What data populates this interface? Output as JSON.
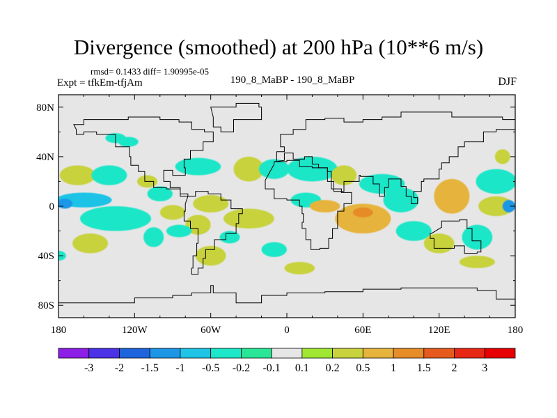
{
  "chart_data": {
    "type": "heatmap",
    "title": "Divergence (smoothed) at 200 hPa (10**6 m/s)",
    "stats_line": "rmsd= 0.1433 diff= 1.90995e-05",
    "experiment_label": "Expt = tfkEm-tfjAm",
    "center_subtitle": "190_8_MaBP - 190_8_MaBP",
    "season": "DJF",
    "x_ticks": [
      "180",
      "120W",
      "60W",
      "0",
      "60E",
      "120E",
      "180"
    ],
    "x_tick_values": [
      -180,
      -120,
      -60,
      0,
      60,
      120,
      180
    ],
    "y_ticks": [
      "80N",
      "40N",
      "0",
      "40S",
      "80S"
    ],
    "y_tick_values": [
      80,
      40,
      0,
      -40,
      -80
    ],
    "xlim": [
      -180,
      180
    ],
    "ylim": [
      -90,
      90
    ],
    "colorbar": {
      "labels": [
        "-3",
        "-2",
        "-1.5",
        "-1",
        "-0.5",
        "-0.2",
        "-0.1",
        "0.1",
        "0.2",
        "0.5",
        "1",
        "1.5",
        "2",
        "3"
      ],
      "levels": [
        -3,
        -2,
        -1.5,
        -1,
        -0.5,
        -0.2,
        -0.1,
        0.1,
        0.2,
        0.5,
        1,
        1.5,
        2,
        3
      ],
      "colors": [
        "#8c1ee6",
        "#4b32e6",
        "#1e64dc",
        "#1e96e6",
        "#1ec3e6",
        "#1ee6c8",
        "#28e696",
        "#e6e6e6",
        "#a0e632",
        "#c8d23c",
        "#e6b43c",
        "#e68c28",
        "#e65a1e",
        "#e62814",
        "#e60000"
      ]
    },
    "background_value_color": "#e6e6e6",
    "anomalies": [
      {
        "lon": -165,
        "lat": 25,
        "rx": 14,
        "ry": 8,
        "value": 0.4
      },
      {
        "lon": -140,
        "lat": 25,
        "rx": 14,
        "ry": 8,
        "value": -0.3
      },
      {
        "lon": -160,
        "lat": 5,
        "rx": 22,
        "ry": 6,
        "value": -0.6
      },
      {
        "lon": -175,
        "lat": 2,
        "rx": 6,
        "ry": 4,
        "value": -1.2
      },
      {
        "lon": -135,
        "lat": -10,
        "rx": 28,
        "ry": 10,
        "value": -0.4
      },
      {
        "lon": -155,
        "lat": -30,
        "rx": 14,
        "ry": 8,
        "value": 0.3
      },
      {
        "lon": -125,
        "lat": 52,
        "rx": 8,
        "ry": 4,
        "value": -0.2
      },
      {
        "lon": -110,
        "lat": 20,
        "rx": 8,
        "ry": 5,
        "value": 0.3
      },
      {
        "lon": -100,
        "lat": 10,
        "rx": 10,
        "ry": 6,
        "value": -0.3
      },
      {
        "lon": -90,
        "lat": -5,
        "rx": 10,
        "ry": 6,
        "value": 0.3
      },
      {
        "lon": -105,
        "lat": -25,
        "rx": 8,
        "ry": 8,
        "value": -0.3
      },
      {
        "lon": -70,
        "lat": 32,
        "rx": 18,
        "ry": 7,
        "value": -0.4
      },
      {
        "lon": -60,
        "lat": 2,
        "rx": 14,
        "ry": 7,
        "value": 0.3
      },
      {
        "lon": -70,
        "lat": -15,
        "rx": 10,
        "ry": 8,
        "value": 0.3
      },
      {
        "lon": -85,
        "lat": -20,
        "rx": 10,
        "ry": 5,
        "value": -0.3
      },
      {
        "lon": -60,
        "lat": -40,
        "rx": 12,
        "ry": 8,
        "value": 0.3
      },
      {
        "lon": -45,
        "lat": -25,
        "rx": 8,
        "ry": 5,
        "value": -0.3
      },
      {
        "lon": -30,
        "lat": 30,
        "rx": 12,
        "ry": 10,
        "value": 0.5
      },
      {
        "lon": -10,
        "lat": 30,
        "rx": 12,
        "ry": 8,
        "value": -0.2
      },
      {
        "lon": -30,
        "lat": -10,
        "rx": 20,
        "ry": 8,
        "value": 0.3
      },
      {
        "lon": -10,
        "lat": -35,
        "rx": 10,
        "ry": 6,
        "value": -0.2
      },
      {
        "lon": 20,
        "lat": 30,
        "rx": 20,
        "ry": 10,
        "value": -0.4
      },
      {
        "lon": 45,
        "lat": 25,
        "rx": 10,
        "ry": 8,
        "value": 0.3
      },
      {
        "lon": 75,
        "lat": 18,
        "rx": 18,
        "ry": 8,
        "value": -0.4
      },
      {
        "lon": 15,
        "lat": 5,
        "rx": 12,
        "ry": 6,
        "value": -0.3
      },
      {
        "lon": 30,
        "lat": 0,
        "rx": 12,
        "ry": 5,
        "value": 0.6
      },
      {
        "lon": 60,
        "lat": -10,
        "rx": 22,
        "ry": 12,
        "value": 0.8
      },
      {
        "lon": 60,
        "lat": -5,
        "rx": 8,
        "ry": 4,
        "value": 1.2
      },
      {
        "lon": 90,
        "lat": 5,
        "rx": 14,
        "ry": 10,
        "value": -0.3
      },
      {
        "lon": 100,
        "lat": -20,
        "rx": 14,
        "ry": 8,
        "value": -0.3
      },
      {
        "lon": 130,
        "lat": 8,
        "rx": 14,
        "ry": 14,
        "value": 0.7
      },
      {
        "lon": 165,
        "lat": 20,
        "rx": 16,
        "ry": 10,
        "value": -0.4
      },
      {
        "lon": 165,
        "lat": 0,
        "rx": 14,
        "ry": 8,
        "value": 0.4
      },
      {
        "lon": 175,
        "lat": 0,
        "rx": 5,
        "ry": 5,
        "value": -1.0
      },
      {
        "lon": 150,
        "lat": -25,
        "rx": 12,
        "ry": 10,
        "value": -0.3
      },
      {
        "lon": 120,
        "lat": -30,
        "rx": 12,
        "ry": 8,
        "value": 0.3
      },
      {
        "lon": 150,
        "lat": -45,
        "rx": 14,
        "ry": 5,
        "value": 0.3
      },
      {
        "lon": -135,
        "lat": 55,
        "rx": 8,
        "ry": 4,
        "value": -0.2
      },
      {
        "lon": 170,
        "lat": 40,
        "rx": 6,
        "ry": 6,
        "value": 0.3
      },
      {
        "lon": 10,
        "lat": -50,
        "rx": 12,
        "ry": 5,
        "value": 0.3
      },
      {
        "lon": -180,
        "lat": -40,
        "rx": 6,
        "ry": 4,
        "value": -0.3
      }
    ]
  }
}
